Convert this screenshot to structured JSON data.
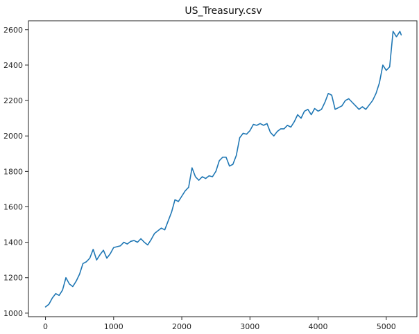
{
  "chart_data": {
    "type": "line",
    "title": "US_Treasury.csv",
    "xlabel": "",
    "ylabel": "",
    "xlim": [
      -250,
      5450
    ],
    "ylim": [
      980,
      2650
    ],
    "grid": false,
    "x_ticks": [
      0,
      1000,
      2000,
      3000,
      4000,
      5000
    ],
    "x_tick_labels": [
      "0",
      "1000",
      "2000",
      "3000",
      "4000",
      "5000"
    ],
    "y_ticks": [
      1000,
      1200,
      1400,
      1600,
      1800,
      2000,
      2200,
      2400,
      2600
    ],
    "y_tick_labels": [
      "1000",
      "1200",
      "1400",
      "1600",
      "1800",
      "2000",
      "2200",
      "2400",
      "2600"
    ],
    "series": [
      {
        "color": "#1f77b4",
        "x": [
          0,
          50,
          100,
          150,
          200,
          250,
          300,
          350,
          400,
          450,
          500,
          550,
          600,
          650,
          700,
          750,
          800,
          850,
          900,
          950,
          1000,
          1050,
          1100,
          1150,
          1200,
          1250,
          1300,
          1350,
          1400,
          1450,
          1500,
          1550,
          1600,
          1650,
          1700,
          1750,
          1800,
          1850,
          1900,
          1950,
          2000,
          2050,
          2100,
          2150,
          2200,
          2250,
          2300,
          2350,
          2400,
          2450,
          2500,
          2550,
          2600,
          2650,
          2700,
          2750,
          2800,
          2850,
          2900,
          2950,
          3000,
          3050,
          3100,
          3150,
          3200,
          3250,
          3300,
          3350,
          3400,
          3450,
          3500,
          3550,
          3600,
          3650,
          3700,
          3750,
          3800,
          3850,
          3900,
          3950,
          4000,
          4050,
          4100,
          4150,
          4200,
          4250,
          4300,
          4350,
          4400,
          4450,
          4500,
          4550,
          4600,
          4650,
          4700,
          4750,
          4800,
          4850,
          4900,
          4950,
          5000,
          5050,
          5100,
          5150,
          5200,
          5220
        ],
        "y": [
          1035,
          1050,
          1085,
          1110,
          1100,
          1130,
          1200,
          1165,
          1150,
          1180,
          1220,
          1280,
          1290,
          1310,
          1360,
          1300,
          1330,
          1355,
          1310,
          1335,
          1370,
          1375,
          1380,
          1400,
          1390,
          1405,
          1410,
          1400,
          1420,
          1400,
          1385,
          1415,
          1450,
          1465,
          1480,
          1470,
          1520,
          1570,
          1640,
          1630,
          1660,
          1690,
          1710,
          1820,
          1770,
          1750,
          1770,
          1760,
          1775,
          1770,
          1800,
          1860,
          1880,
          1880,
          1830,
          1840,
          1890,
          1990,
          2015,
          2010,
          2030,
          2065,
          2060,
          2070,
          2060,
          2070,
          2020,
          2000,
          2025,
          2040,
          2040,
          2060,
          2050,
          2080,
          2120,
          2100,
          2140,
          2150,
          2120,
          2155,
          2140,
          2150,
          2190,
          2240,
          2230,
          2150,
          2160,
          2170,
          2200,
          2210,
          2190,
          2170,
          2150,
          2165,
          2150,
          2175,
          2200,
          2240,
          2300,
          2400,
          2370,
          2390,
          2590,
          2560,
          2590,
          2570
        ]
      }
    ]
  }
}
